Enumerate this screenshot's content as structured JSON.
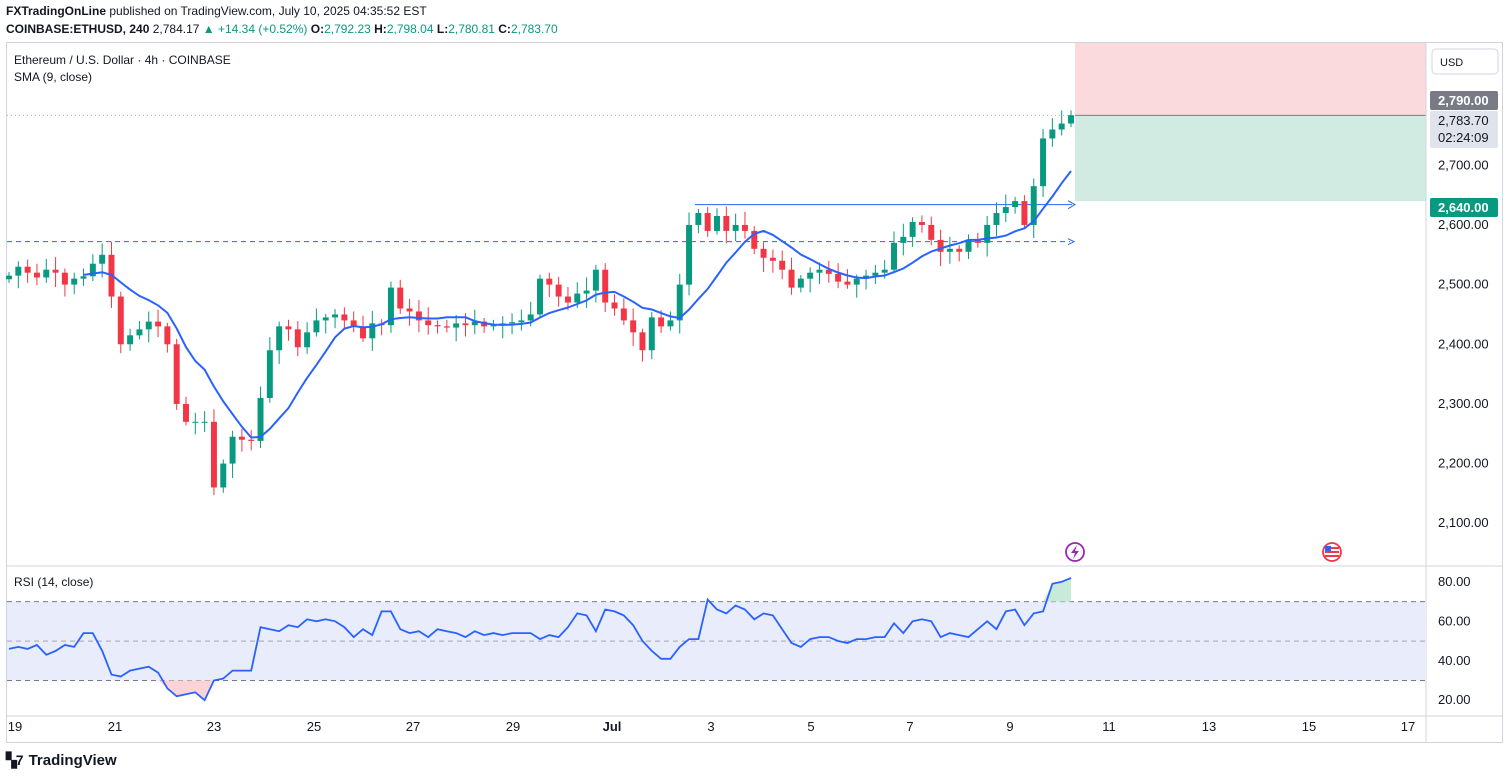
{
  "header": {
    "publisher": "FXTradingOnLine",
    "published_text": "published on TradingView.com, July 10, 2025 04:35:52 EST",
    "symbol": "COINBASE:ETHUSD, 240",
    "last": "2,784.17",
    "change": "▲ +14.34 (+0.52%)",
    "o_label": "O:",
    "o": "2,792.23",
    "h_label": "H:",
    "h": "2,798.04",
    "l_label": "L:",
    "l": "2,780.81",
    "c_label": "C:",
    "c": "2,783.70"
  },
  "legend": {
    "title": "Ethereum / U.S. Dollar · 4h · COINBASE",
    "sma": "SMA (9, close)",
    "rsi": "RSI (14, close)"
  },
  "currency_button": "USD",
  "price_tags": {
    "stop": "2,790.00",
    "last": "2,783.70",
    "countdown": "02:24:09",
    "target": "2,640.00"
  },
  "footer": {
    "brand": "TradingView"
  },
  "colors": {
    "up": "#089981",
    "down": "#f23645",
    "sma": "#2962ff",
    "rsi": "#2962ff",
    "rsi_band": "#e8ecfb",
    "stop_zone": "#fadadd",
    "target_zone": "#d1ebe3"
  },
  "icons": [
    "lightning-event-icon",
    "us-flag-icon"
  ],
  "chart_data": {
    "type": "candlestick",
    "x_tick_labels": [
      "19",
      "21",
      "23",
      "25",
      "27",
      "29",
      "Jul",
      "3",
      "5",
      "7",
      "9",
      "11",
      "13",
      "15",
      "17"
    ],
    "y_tick_labels": [
      "2,700.00",
      "2,600.00",
      "2,500.00",
      "2,400.00",
      "2,300.00",
      "2,200.00",
      "2,100.00"
    ],
    "y_ticks": [
      2700,
      2600,
      2500,
      2400,
      2300,
      2200,
      2100
    ],
    "ylim": [
      2030,
      2905
    ],
    "rsi_tick_labels": [
      "80.00",
      "60.00",
      "40.00",
      "20.00"
    ],
    "rsi_ticks": [
      80,
      60,
      40,
      20
    ],
    "rsi_ylim": [
      12,
      86
    ],
    "rsi_bands": [
      70,
      50,
      30
    ],
    "horizontal_level": 2572,
    "breakout_ray": 2634,
    "position": {
      "entry": 2783.7,
      "stop": 2790,
      "target": 2640
    },
    "closes": [
      2515,
      2530,
      2520,
      2512,
      2525,
      2520,
      2500,
      2510,
      2514,
      2535,
      2550,
      2480,
      2400,
      2415,
      2425,
      2438,
      2430,
      2400,
      2300,
      2270,
      2270,
      2270,
      2160,
      2200,
      2245,
      2240,
      2238,
      2310,
      2390,
      2430,
      2425,
      2395,
      2420,
      2440,
      2445,
      2450,
      2440,
      2430,
      2410,
      2435,
      2432,
      2495,
      2460,
      2455,
      2440,
      2432,
      2430,
      2428,
      2435,
      2432,
      2438,
      2430,
      2432,
      2435,
      2437,
      2440,
      2450,
      2510,
      2500,
      2480,
      2470,
      2485,
      2490,
      2525,
      2470,
      2460,
      2440,
      2420,
      2390,
      2445,
      2430,
      2440,
      2500,
      2600,
      2620,
      2590,
      2615,
      2590,
      2600,
      2590,
      2560,
      2545,
      2540,
      2525,
      2495,
      2510,
      2520,
      2525,
      2518,
      2505,
      2500,
      2510,
      2515,
      2520,
      2525,
      2570,
      2580,
      2605,
      2600,
      2575,
      2555,
      2560,
      2555,
      2575,
      2570,
      2600,
      2620,
      2630,
      2640,
      2600,
      2665,
      2745,
      2760,
      2770,
      2784
    ],
    "rsi": [
      46,
      47,
      46,
      48,
      43,
      45,
      48,
      47,
      54,
      54,
      45,
      33,
      32,
      35,
      36,
      37,
      34,
      26,
      22,
      23,
      24,
      20,
      30,
      31,
      35,
      35,
      35,
      57,
      56,
      55,
      58,
      57,
      61,
      60,
      61,
      60,
      57,
      52,
      56,
      53,
      65,
      65,
      56,
      54,
      55,
      52,
      56,
      55,
      54,
      52,
      55,
      53,
      54,
      53,
      54,
      54,
      54,
      51,
      53,
      52,
      57,
      64,
      63,
      55,
      66,
      65,
      63,
      58,
      50,
      45,
      41,
      41,
      47,
      51,
      51,
      71,
      66,
      64,
      68,
      66,
      61,
      64,
      63,
      56,
      49,
      47,
      51,
      52,
      52,
      50,
      49,
      51,
      51,
      52,
      52,
      59,
      54,
      60,
      61,
      60,
      52,
      54,
      53,
      52,
      56,
      60,
      56,
      65,
      66,
      58,
      64,
      65,
      79,
      80,
      82
    ]
  }
}
